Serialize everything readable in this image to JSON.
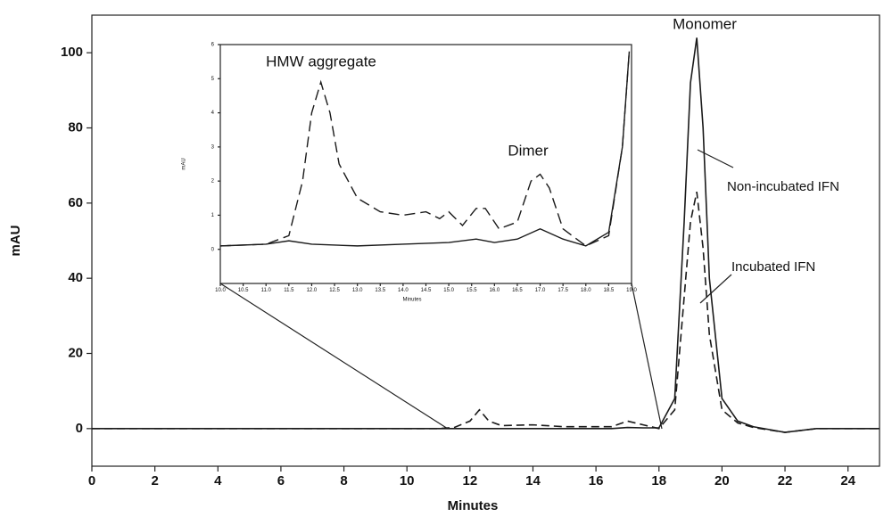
{
  "chart_data": [
    {
      "type": "line",
      "x_label": "Minutes",
      "y_label": "mAU",
      "xlim": [
        0,
        25
      ],
      "ylim": [
        -10,
        110
      ],
      "xticks": [
        0,
        2,
        4,
        6,
        8,
        10,
        12,
        14,
        16,
        18,
        20,
        22,
        24
      ],
      "yticks": [
        0,
        20,
        40,
        60,
        80,
        100
      ],
      "annotations": [
        "Monomer"
      ],
      "x": [
        0,
        2,
        4,
        6,
        8,
        10,
        11,
        11.5,
        12,
        12.3,
        12.6,
        13,
        14,
        15,
        16,
        16.5,
        17,
        17.5,
        18,
        18.5,
        18.8,
        19.0,
        19.2,
        19.4,
        19.6,
        20,
        20.5,
        21,
        22,
        23,
        25
      ],
      "series": [
        {
          "name": "Non-incubated IFN",
          "color": "#1a1a1a",
          "dash": false,
          "values": [
            0,
            0,
            0,
            0,
            0,
            0,
            0,
            0,
            0,
            0,
            0,
            0,
            0,
            0,
            0,
            0,
            0.3,
            0.2,
            0.2,
            8,
            55,
            92,
            104,
            80,
            40,
            8,
            2,
            0.5,
            -1,
            0,
            0
          ]
        },
        {
          "name": "Incubated IFN",
          "color": "#1a1a1a",
          "dash": true,
          "values": [
            0,
            0,
            0,
            0,
            0,
            0,
            0,
            0.3,
            2,
            5,
            2,
            0.8,
            1,
            0.5,
            0.5,
            0.5,
            2,
            1,
            0,
            5,
            35,
            55,
            63,
            48,
            25,
            5,
            1.5,
            0.3,
            -1,
            0,
            0
          ]
        }
      ]
    },
    {
      "type": "line",
      "x_label": "Minutes",
      "y_label": "mAU",
      "xlim": [
        10,
        19
      ],
      "ylim": [
        -1,
        6
      ],
      "xticks": [
        {
          "value": 10,
          "label": "10.0"
        },
        10.5,
        {
          "value": 11,
          "label": "11.0"
        },
        11.5,
        {
          "value": 12,
          "label": "12.0"
        },
        12.5,
        {
          "value": 13,
          "label": "13.0"
        },
        13.5,
        {
          "value": 14,
          "label": "14.0"
        },
        14.5,
        {
          "value": 15,
          "label": "15.0"
        },
        15.5,
        {
          "value": 16,
          "label": "16.0"
        },
        16.5,
        {
          "value": 17,
          "label": "17.0"
        },
        17.5,
        {
          "value": 18,
          "label": "18.0"
        },
        18.5,
        {
          "value": 19,
          "label": "19.0"
        }
      ],
      "yticks": [
        0,
        1,
        2,
        3,
        4,
        5,
        6
      ],
      "annotations": [
        "HMW aggregate",
        "Dimer"
      ],
      "series": [
        {
          "color": "#1a1a1a",
          "dash": false,
          "x": [
            10,
            11,
            11.5,
            12,
            13,
            14,
            15,
            15.6,
            16,
            16.5,
            17,
            17.5,
            18,
            18.5,
            18.8,
            18.95
          ],
          "values": [
            0.1,
            0.15,
            0.25,
            0.15,
            0.1,
            0.15,
            0.2,
            0.3,
            0.2,
            0.3,
            0.6,
            0.3,
            0.1,
            0.5,
            3,
            5.8
          ]
        },
        {
          "color": "#1a1a1a",
          "dash": true,
          "x": [
            10,
            11,
            11.5,
            11.8,
            12.0,
            12.2,
            12.4,
            12.6,
            13,
            13.5,
            14,
            14.5,
            14.8,
            15.0,
            15.3,
            15.6,
            15.8,
            16.1,
            16.5,
            16.8,
            17.0,
            17.2,
            17.5,
            18,
            18.5,
            18.8,
            18.95
          ],
          "values": [
            0.1,
            0.15,
            0.4,
            2,
            4,
            4.9,
            4,
            2.5,
            1.5,
            1.1,
            1,
            1.1,
            0.9,
            1.1,
            0.7,
            1.2,
            1.2,
            0.6,
            0.8,
            2,
            2.2,
            1.8,
            0.6,
            0.1,
            0.4,
            3,
            5.8
          ]
        }
      ]
    }
  ]
}
